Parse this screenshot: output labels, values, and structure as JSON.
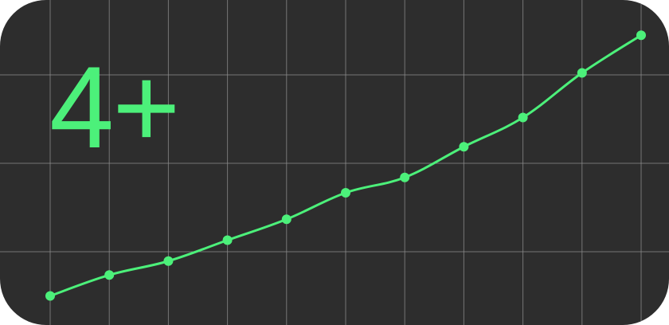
{
  "headline": "4+",
  "colors": {
    "background": "#2d2d2d",
    "grid": "#8e8e8e",
    "accent": "#4cf07a"
  },
  "chart_data": {
    "type": "line",
    "grid": true,
    "x": [
      1,
      2,
      3,
      4,
      5,
      6,
      7,
      8,
      9,
      10,
      11
    ],
    "series": [
      {
        "values": [
          5,
          12.5,
          17.5,
          25,
          32.5,
          42,
          47.5,
          58.5,
          69,
          85,
          98.5
        ]
      }
    ],
    "xlim": [
      1,
      11
    ],
    "ylim": [
      0,
      100
    ]
  }
}
